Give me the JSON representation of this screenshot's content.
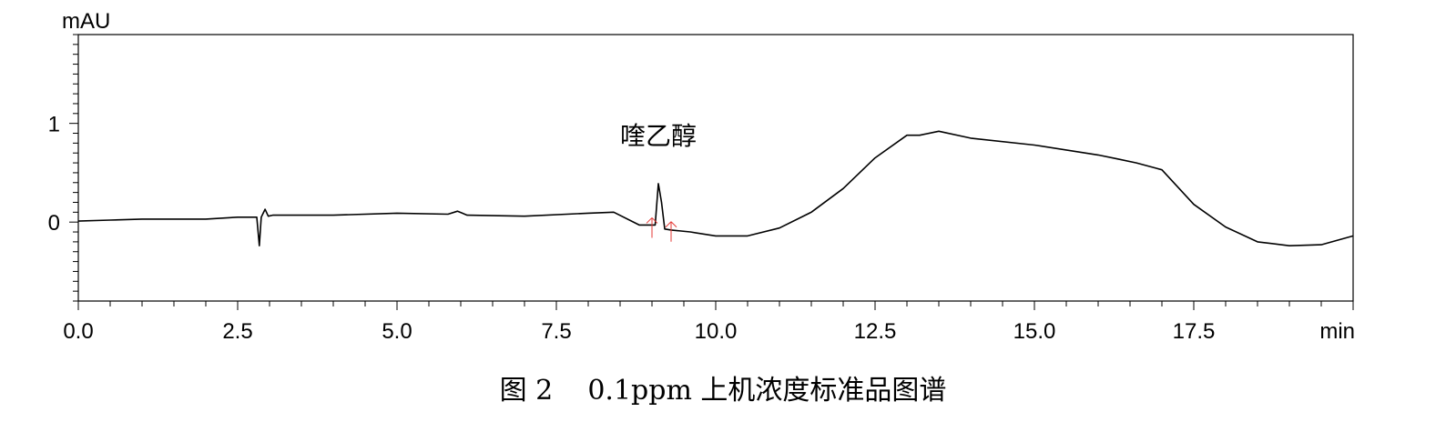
{
  "chart_data": {
    "type": "line",
    "ylabel": "mAU",
    "xlabel": "min",
    "xlim": [
      0,
      20
    ],
    "ylim": [
      -0.8,
      1.9
    ],
    "x_ticks": [
      "0.0",
      "2.5",
      "5.0",
      "7.5",
      "10.0",
      "12.5",
      "15.0",
      "17.5"
    ],
    "y_ticks": [
      "0",
      "1"
    ],
    "grid": false,
    "series": [
      {
        "x": [
          0,
          0.5,
          1,
          1.5,
          2,
          2.5,
          2.8,
          2.84,
          2.87,
          2.93,
          2.98,
          3.05,
          3.3,
          4,
          5,
          5.8,
          5.95,
          6.1,
          7,
          8,
          8.4,
          8.8,
          9.05,
          9.1,
          9.15,
          9.2,
          9.3,
          9.6,
          10,
          10.5,
          11,
          11.5,
          12,
          12.5,
          13,
          13.2,
          13.5,
          14,
          15,
          16,
          16.3,
          16.6,
          17,
          17.5,
          18,
          18.5,
          19,
          19.5,
          20
        ],
        "y": [
          0.01,
          0.02,
          0.03,
          0.03,
          0.03,
          0.05,
          0.05,
          -0.24,
          0.05,
          0.13,
          0.06,
          0.07,
          0.07,
          0.07,
          0.09,
          0.08,
          0.11,
          0.07,
          0.06,
          0.09,
          0.1,
          -0.03,
          -0.03,
          0.39,
          0.2,
          -0.07,
          -0.08,
          -0.1,
          -0.14,
          -0.14,
          -0.06,
          0.1,
          0.34,
          0.65,
          0.88,
          0.88,
          0.92,
          0.85,
          0.78,
          0.68,
          0.64,
          0.6,
          0.53,
          0.18,
          -0.05,
          -0.2,
          -0.24,
          -0.23,
          -0.14
        ]
      }
    ],
    "annotations": [
      {
        "text": "喹乙醇",
        "x": 9.1,
        "y": 0.41
      }
    ]
  },
  "caption": "图 2    0.1ppm 上机浓度标准品图谱"
}
